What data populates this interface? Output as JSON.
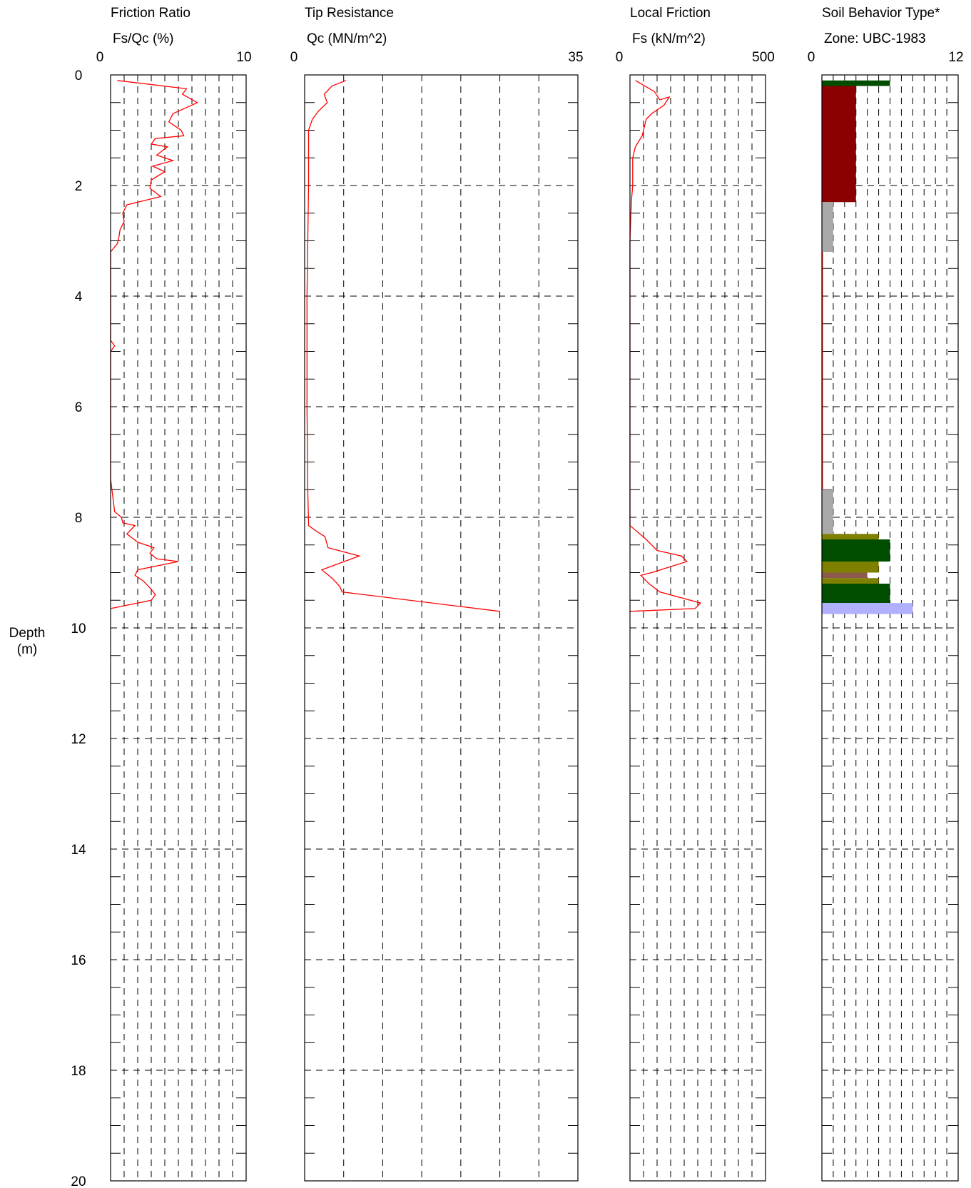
{
  "depth_axis": {
    "label_line1": "Depth",
    "label_line2": "(m)",
    "range": [
      0,
      20
    ],
    "ticks": [
      "0",
      "2",
      "4",
      "6",
      "8",
      "10",
      "12",
      "14",
      "16",
      "18",
      "20"
    ]
  },
  "colors": {
    "line": "#ff0000",
    "grid": "#000000",
    "frame": "#000000"
  },
  "chart_data": [
    {
      "type": "line",
      "title": "Friction Ratio",
      "xlabel": "Fs/Qc (%)",
      "xlim": [
        0,
        10
      ],
      "x_tick_labels": [
        "0",
        "10"
      ],
      "ylabel": "Depth (m)",
      "ylim": [
        0,
        20
      ],
      "y_inverted": true,
      "grid": true,
      "series": [
        {
          "points": [
            [
              0.5,
              0.1
            ],
            [
              5.6,
              0.25
            ],
            [
              5.3,
              0.35
            ],
            [
              6.4,
              0.5
            ],
            [
              4.6,
              0.7
            ],
            [
              4.3,
              0.85
            ],
            [
              5.2,
              1.0
            ],
            [
              5.4,
              1.1
            ],
            [
              3.3,
              1.15
            ],
            [
              3.0,
              1.25
            ],
            [
              4.2,
              1.3
            ],
            [
              3.4,
              1.45
            ],
            [
              4.6,
              1.55
            ],
            [
              3.1,
              1.65
            ],
            [
              4.0,
              1.75
            ],
            [
              3.0,
              1.9
            ],
            [
              2.9,
              2.05
            ],
            [
              3.7,
              2.2
            ],
            [
              1.2,
              2.35
            ],
            [
              0.9,
              2.5
            ],
            [
              1.0,
              2.65
            ],
            [
              0.7,
              2.8
            ],
            [
              0.6,
              2.95
            ],
            [
              0.5,
              3.05
            ],
            [
              0.0,
              3.2
            ],
            [
              0.0,
              4.8
            ],
            [
              0.3,
              4.9
            ],
            [
              0.0,
              5.0
            ],
            [
              0.0,
              7.3
            ],
            [
              0.3,
              7.9
            ],
            [
              0.8,
              8.0
            ],
            [
              0.9,
              8.1
            ],
            [
              1.8,
              8.15
            ],
            [
              1.2,
              8.3
            ],
            [
              2.0,
              8.45
            ],
            [
              3.2,
              8.55
            ],
            [
              2.9,
              8.65
            ],
            [
              3.4,
              8.75
            ],
            [
              5.0,
              8.8
            ],
            [
              2.0,
              8.95
            ],
            [
              1.8,
              9.05
            ],
            [
              2.4,
              9.15
            ],
            [
              3.0,
              9.3
            ],
            [
              3.3,
              9.4
            ],
            [
              3.0,
              9.5
            ],
            [
              0.0,
              9.65
            ]
          ]
        }
      ]
    },
    {
      "type": "line",
      "title": "Tip Resistance",
      "xlabel": "Qc (MN/m^2)",
      "xlim": [
        0,
        35
      ],
      "x_tick_labels": [
        "0",
        "35"
      ],
      "ylabel": "Depth (m)",
      "ylim": [
        0,
        20
      ],
      "y_inverted": true,
      "grid": true,
      "series": [
        {
          "points": [
            [
              5.3,
              0.1
            ],
            [
              3.5,
              0.2
            ],
            [
              2.5,
              0.35
            ],
            [
              2.9,
              0.5
            ],
            [
              1.8,
              0.65
            ],
            [
              1.0,
              0.8
            ],
            [
              0.5,
              1.0
            ],
            [
              0.5,
              1.3
            ],
            [
              0.5,
              2.0
            ],
            [
              0.3,
              4.0
            ],
            [
              0.3,
              6.0
            ],
            [
              0.4,
              7.5
            ],
            [
              0.5,
              8.15
            ],
            [
              1.5,
              8.25
            ],
            [
              2.6,
              8.35
            ],
            [
              2.9,
              8.5
            ],
            [
              3.0,
              8.55
            ],
            [
              7.0,
              8.7
            ],
            [
              2.2,
              8.95
            ],
            [
              3.5,
              9.1
            ],
            [
              4.5,
              9.25
            ],
            [
              4.8,
              9.35
            ],
            [
              25.0,
              9.7
            ]
          ]
        }
      ]
    },
    {
      "type": "line",
      "title": "Local Friction",
      "xlabel": "Fs (kN/m^2)",
      "xlim": [
        0,
        500
      ],
      "x_tick_labels": [
        "0",
        "500"
      ],
      "ylabel": "Depth (m)",
      "ylim": [
        0,
        20
      ],
      "y_inverted": true,
      "grid": true,
      "series": [
        {
          "points": [
            [
              20,
              0.1
            ],
            [
              90,
              0.3
            ],
            [
              110,
              0.45
            ],
            [
              145,
              0.4
            ],
            [
              125,
              0.55
            ],
            [
              80,
              0.7
            ],
            [
              60,
              0.8
            ],
            [
              50,
              1.0
            ],
            [
              45,
              1.1
            ],
            [
              20,
              1.3
            ],
            [
              10,
              1.5
            ],
            [
              10,
              2.0
            ],
            [
              5,
              2.3
            ],
            [
              0,
              3.0
            ],
            [
              0,
              8.15
            ],
            [
              60,
              8.4
            ],
            [
              100,
              8.6
            ],
            [
              190,
              8.7
            ],
            [
              210,
              8.8
            ],
            [
              80,
              9.0
            ],
            [
              40,
              9.05
            ],
            [
              70,
              9.2
            ],
            [
              110,
              9.35
            ],
            [
              260,
              9.55
            ],
            [
              240,
              9.65
            ],
            [
              0,
              9.7
            ]
          ]
        }
      ]
    },
    {
      "type": "bar",
      "orientation": "horizontal",
      "title": "Soil Behavior Type*",
      "xlabel": "Zone: UBC-1983",
      "xlim": [
        0,
        12
      ],
      "x_tick_labels": [
        "0",
        "12"
      ],
      "ylabel": "Depth (m)",
      "ylim": [
        0,
        20
      ],
      "y_inverted": true,
      "grid": true,
      "bars": [
        {
          "top": 0.1,
          "bottom": 0.2,
          "zone": 6,
          "color": "#004d00"
        },
        {
          "top": 0.2,
          "bottom": 2.3,
          "zone": 3,
          "color": "#8b0000"
        },
        {
          "top": 2.3,
          "bottom": 3.2,
          "zone": 1,
          "color": "#a9a9a9"
        },
        {
          "top": 7.5,
          "bottom": 8.3,
          "zone": 1,
          "color": "#a9a9a9"
        },
        {
          "top": 8.3,
          "bottom": 8.4,
          "zone": 5,
          "color": "#808000"
        },
        {
          "top": 8.4,
          "bottom": 8.8,
          "zone": 6,
          "color": "#004d00"
        },
        {
          "top": 8.8,
          "bottom": 9.0,
          "zone": 5,
          "color": "#808000"
        },
        {
          "top": 9.0,
          "bottom": 9.1,
          "zone": 4,
          "color": "#8b5a4a"
        },
        {
          "top": 9.1,
          "bottom": 9.2,
          "zone": 5,
          "color": "#808000"
        },
        {
          "top": 9.2,
          "bottom": 9.55,
          "zone": 6,
          "color": "#004d00"
        },
        {
          "top": 9.55,
          "bottom": 9.75,
          "zone": 8,
          "color": "#b0b0ff"
        }
      ]
    }
  ]
}
